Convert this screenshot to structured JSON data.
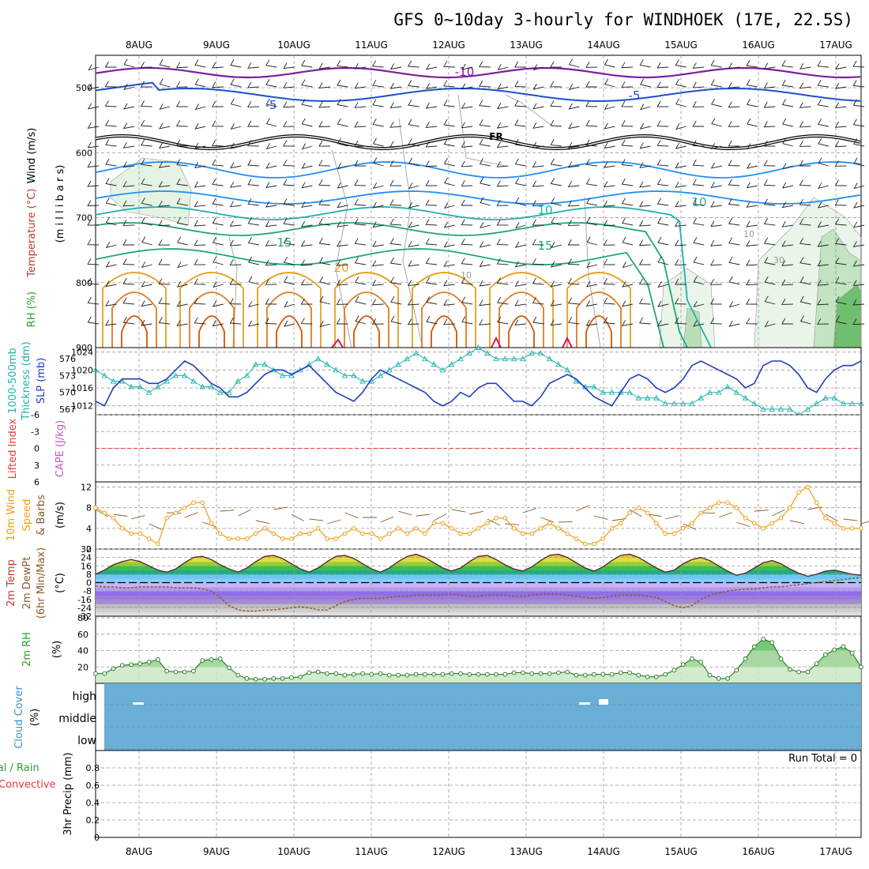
{
  "chart_data": {
    "title": "GFS 0~10day 3-hourly for WINDHOEK (17E, 22.5S)",
    "dates": [
      "8AUG",
      "9AUG",
      "10AUG",
      "11AUG",
      "12AUG",
      "13AUG",
      "14AUG",
      "15AUG",
      "16AUG",
      "17AUG"
    ],
    "colors": {
      "panel_bg": "#ffffff",
      "cloud_fill": "#6baed6",
      "grid": "#aaaaaa",
      "rh": "#2ca02c",
      "wind": "#f39c12",
      "slp": "#1f3fbf",
      "thickness": "#20b2aa"
    },
    "panels": [
      {
        "id": "upper_air",
        "type": "contour",
        "ylabels": [
          {
            "text": "RH (%)",
            "color": "#2ca02c"
          },
          {
            "text": "Temperature (°C)",
            "color": "#c0392b"
          },
          {
            "text": "Wind (m/s)",
            "color": "#000000"
          },
          {
            "text": "(m i l l i b a r s)",
            "color": "#000000"
          }
        ],
        "yticks": [
          "500",
          "600",
          "700",
          "800",
          "900"
        ],
        "ylim": [
          450,
          900
        ],
        "contour_labels": [
          "-10",
          "-5",
          "-5",
          "FR",
          "10",
          "10",
          "15",
          "15",
          "20",
          "10",
          "10",
          "30"
        ],
        "isotherm_colors": {
          "-10": "#7b1fa2",
          "-5": "#1f4fd1",
          "FR": "#000000",
          "5": "#1e90ff",
          "10": "#20b2aa",
          "15": "#1fa67a",
          "20": "#e6a020"
        }
      },
      {
        "id": "slp_thickness",
        "type": "line",
        "ylabels": [
          {
            "text": "1000-500mb",
            "color": "#20b2aa"
          },
          {
            "text": "Thickness (dm)",
            "color": "#20b2aa"
          },
          {
            "text": "SLP (mb)",
            "color": "#1f3fbf"
          }
        ],
        "left_ticks": [
          "576",
          "573",
          "570",
          "567"
        ],
        "right_ticks": [
          "1024",
          "1020",
          "1016",
          "1012"
        ],
        "series": [
          {
            "name": "Thickness",
            "color": "#20b2aa",
            "ylim": [
              566,
              578
            ],
            "values": [
              574,
              573,
              572,
              572,
              571,
              571,
              570,
              571,
              572,
              573,
              573,
              572,
              571,
              571,
              570,
              570,
              572,
              573,
              575,
              575,
              574,
              573,
              573,
              574,
              575,
              576,
              575,
              574,
              573,
              573,
              572,
              572,
              573,
              574,
              575,
              576,
              577,
              576,
              575,
              574,
              575,
              576,
              577,
              578,
              577,
              576,
              576,
              576,
              576,
              577,
              577,
              576,
              575,
              574,
              572,
              571,
              571,
              570,
              570,
              570,
              570,
              569,
              569,
              569,
              568,
              568,
              568,
              568,
              569,
              570,
              570,
              571,
              570,
              569,
              568,
              567,
              567,
              567,
              567,
              566,
              567,
              568,
              569,
              569,
              568,
              568,
              568
            ]
          },
          {
            "name": "SLP",
            "color": "#1f3fbf",
            "ylim": [
              1010,
              1025
            ],
            "values": [
              1013,
              1012,
              1016,
              1018,
              1018,
              1018,
              1017,
              1017,
              1018,
              1020,
              1022,
              1021,
              1019,
              1017,
              1016,
              1014,
              1014,
              1015,
              1017,
              1019,
              1020,
              1020,
              1019,
              1020,
              1021,
              1019,
              1017,
              1015,
              1014,
              1013,
              1015,
              1018,
              1020,
              1019,
              1018,
              1017,
              1016,
              1015,
              1013,
              1012,
              1013,
              1015,
              1014,
              1016,
              1017,
              1017,
              1015,
              1013,
              1013,
              1012,
              1014,
              1017,
              1018,
              1019,
              1018,
              1016,
              1014,
              1013,
              1012,
              1015,
              1018,
              1019,
              1018,
              1016,
              1015,
              1016,
              1018,
              1021,
              1022,
              1021,
              1020,
              1019,
              1018,
              1016,
              1017,
              1021,
              1022,
              1022,
              1021,
              1019,
              1016,
              1015,
              1018,
              1020,
              1021,
              1021,
              1022
            ]
          }
        ]
      },
      {
        "id": "cape_li",
        "type": "line",
        "ylabels": [
          {
            "text": "Lifted Index",
            "color": "#e53935"
          },
          {
            "text": "CAPE (J/kg)",
            "color": "#c05ac0"
          }
        ],
        "yticks": [
          "-6",
          "-3",
          "0",
          "3",
          "6"
        ],
        "ylim": [
          6,
          -6
        ],
        "reference": 0
      },
      {
        "id": "wind10m",
        "type": "line",
        "ylabels": [
          {
            "text": "10m Wind",
            "color": "#f39c12"
          },
          {
            "text": "Speed",
            "color": "#f39c12"
          },
          {
            "text": "& Barbs",
            "color": "#8b5a2b"
          },
          {
            "text": "(m/s)",
            "color": "#000000"
          }
        ],
        "yticks": [
          "12",
          "8",
          "4",
          "0"
        ],
        "ylim": [
          0,
          13
        ],
        "series": [
          {
            "name": "Speed",
            "color": "#f39c12",
            "values": [
              8,
              7,
              6,
              4,
              3,
              3,
              2,
              1,
              6,
              7,
              8,
              9,
              9,
              5,
              3,
              2,
              2,
              2,
              3,
              4,
              3,
              2,
              2,
              3,
              3,
              4,
              2,
              2,
              3,
              4,
              3,
              3,
              2,
              3,
              4,
              3,
              4,
              3,
              5,
              5,
              4,
              3,
              3,
              4,
              5,
              6,
              6,
              4,
              3,
              3,
              4,
              5,
              4,
              3,
              2,
              1,
              1,
              2,
              4,
              5,
              7,
              8,
              7,
              5,
              3,
              3,
              4,
              5,
              7,
              8,
              9,
              9,
              8,
              6,
              5,
              4,
              5,
              6,
              8,
              11,
              12,
              9,
              6,
              5,
              4,
              4,
              4
            ]
          }
        ]
      },
      {
        "id": "temp2m",
        "type": "area",
        "ylabels": [
          {
            "text": "2m Temp",
            "color": "#c0392b"
          },
          {
            "text": "2m DewPt",
            "color": "#8b5a2b"
          },
          {
            "text": "(6hr Min/Max)",
            "color": "#8b5a2b"
          },
          {
            "text": "(°C)",
            "color": "#000000"
          }
        ],
        "yticks": [
          "32",
          "24",
          "16",
          "8",
          "0",
          "-8",
          "-16",
          "-24",
          "-32"
        ],
        "ylim": [
          -32,
          32
        ],
        "series": [
          {
            "name": "Temp",
            "values": [
              8,
              12,
              17,
              20,
              22,
              20,
              16,
              12,
              10,
              13,
              19,
              24,
              25,
              22,
              17,
              13,
              10,
              14,
              20,
              25,
              26,
              23,
              18,
              13,
              10,
              14,
              20,
              25,
              26,
              23,
              18,
              13,
              10,
              14,
              20,
              25,
              27,
              24,
              19,
              14,
              11,
              14,
              20,
              25,
              26,
              22,
              17,
              13,
              11,
              15,
              21,
              26,
              27,
              24,
              19,
              14,
              11,
              15,
              21,
              26,
              27,
              24,
              19,
              14,
              10,
              12,
              18,
              22,
              24,
              21,
              16,
              11,
              7,
              9,
              14,
              19,
              21,
              18,
              13,
              9,
              6,
              8,
              11,
              12,
              10,
              8,
              7
            ]
          },
          {
            "name": "DewPt",
            "values": [
              -3,
              -4,
              -4,
              -5,
              -5,
              -4,
              -4,
              -4,
              -4,
              -5,
              -5,
              -5,
              -6,
              -8,
              -14,
              -22,
              -26,
              -27,
              -27,
              -26,
              -26,
              -25,
              -24,
              -23,
              -24,
              -26,
              -26,
              -22,
              -18,
              -16,
              -15,
              -15,
              -15,
              -14,
              -13,
              -13,
              -12,
              -12,
              -12,
              -12,
              -11,
              -12,
              -13,
              -13,
              -12,
              -12,
              -12,
              -13,
              -13,
              -12,
              -11,
              -11,
              -11,
              -12,
              -13,
              -14,
              -15,
              -14,
              -13,
              -12,
              -12,
              -12,
              -13,
              -14,
              -18,
              -22,
              -24,
              -22,
              -16,
              -12,
              -10,
              -8,
              -7,
              -6,
              -6,
              -5,
              -4,
              -4,
              -3,
              -2,
              -1,
              0,
              1,
              2,
              3,
              4,
              5
            ]
          }
        ]
      },
      {
        "id": "rh2m",
        "type": "area",
        "ylabels": [
          {
            "text": "2m RH",
            "color": "#2ca02c"
          },
          {
            "text": "(%)",
            "color": "#000000"
          }
        ],
        "yticks": [
          "80",
          "60",
          "40",
          "20"
        ],
        "ylim": [
          0,
          82
        ],
        "series": [
          {
            "name": "RH",
            "color": "#2ca02c",
            "values": [
              12,
              12,
              18,
              22,
              23,
              24,
              26,
              29,
              15,
              14,
              14,
              15,
              28,
              29,
              30,
              19,
              10,
              6,
              5,
              5,
              6,
              6,
              7,
              8,
              13,
              14,
              12,
              12,
              10,
              11,
              12,
              11,
              12,
              10,
              10,
              10,
              11,
              11,
              11,
              11,
              12,
              12,
              11,
              11,
              11,
              11,
              11,
              13,
              13,
              12,
              12,
              12,
              13,
              14,
              10,
              10,
              11,
              11,
              11,
              13,
              13,
              10,
              8,
              8,
              11,
              16,
              23,
              30,
              26,
              10,
              6,
              6,
              16,
              30,
              45,
              54,
              50,
              30,
              17,
              14,
              14,
              24,
              35,
              41,
              45,
              37,
              20
            ]
          }
        ]
      },
      {
        "id": "cloud",
        "type": "heatmap",
        "ylabels": [
          {
            "text": "Cloud Cover",
            "color": "#3d8fd1"
          },
          {
            "text": "(%)",
            "color": "#000000"
          }
        ],
        "yticks": [
          "high",
          "middle",
          "low"
        ]
      },
      {
        "id": "precip",
        "type": "bar",
        "ylabels": [
          {
            "text": "Total / Rain",
            "color": "#2ca02c"
          },
          {
            "text": "Convective",
            "color": "#e53935"
          },
          {
            "text": "3hr Precip (mm)",
            "color": "#000000"
          }
        ],
        "yticks": [
          "0.8",
          "0.6",
          "0.4",
          "0.2",
          "0"
        ],
        "ylim": [
          0,
          1
        ],
        "note": "Run Total = 0"
      }
    ]
  }
}
